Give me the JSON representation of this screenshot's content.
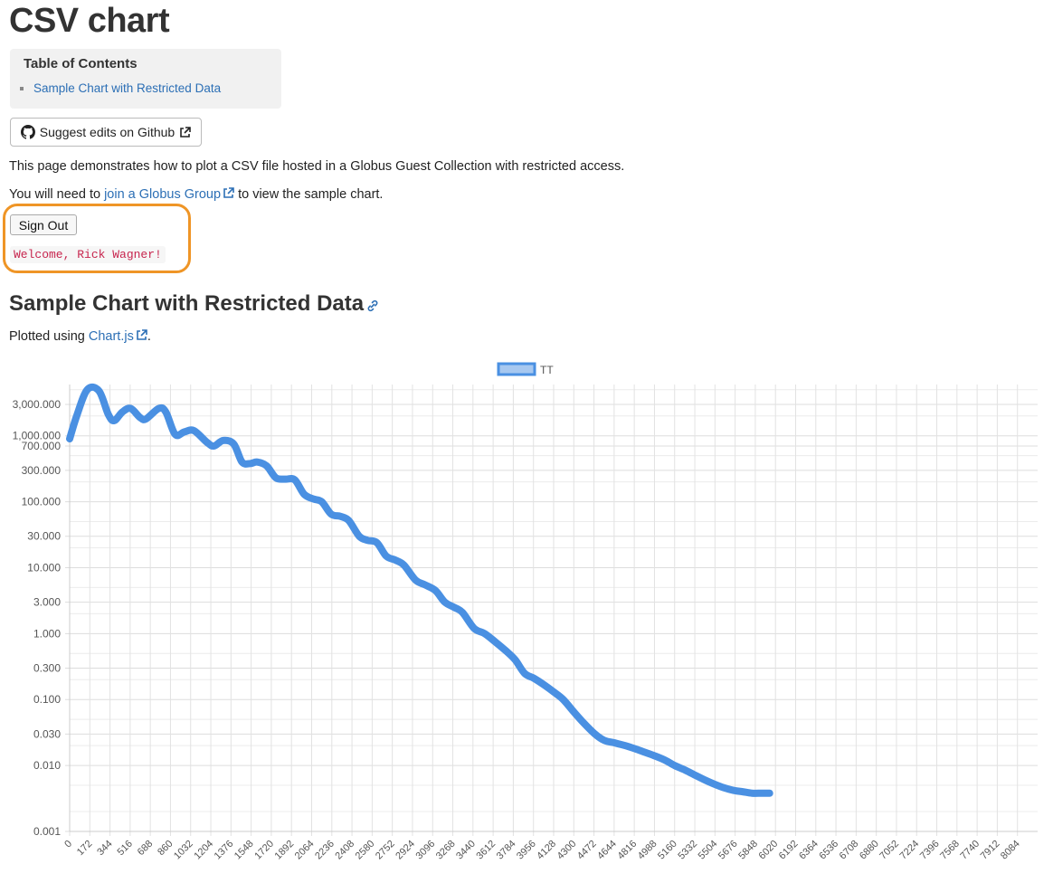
{
  "page": {
    "title": "CSV chart",
    "toc_title": "Table of Contents",
    "toc_items": [
      "Sample Chart with Restricted Data"
    ],
    "github_button": "Suggest edits on Github",
    "intro": "This page demonstrates how to plot a CSV file hosted in a Globus Guest Collection with restricted access.",
    "join_prefix": "You will need to ",
    "join_link": "join a Globus Group",
    "join_suffix": " to view the sample chart.",
    "sign_out": "Sign Out",
    "welcome": "Welcome, Rick Wagner!",
    "section_title": "Sample Chart with Restricted Data",
    "plotted_prefix": "Plotted using ",
    "plotted_link": "Chart.js",
    "plotted_suffix": ".",
    "colors": {
      "link": "#2c6fb5",
      "highlight": "#ef9526",
      "series": "#4a90e2",
      "welcome": "#c7254e"
    },
    "icons": [
      "github-icon",
      "external-link-icon",
      "link-icon"
    ]
  },
  "chart_data": {
    "type": "line",
    "legend": {
      "position": "top",
      "items": [
        {
          "name": "TT",
          "color": "#4a90e2"
        }
      ]
    },
    "y_scale": "log",
    "ylim": [
      0.001,
      6000
    ],
    "y_tick_labels": [
      "3,000.000",
      "1,000.000",
      "700.000",
      "300.000",
      "100.000",
      "30.000",
      "10.000",
      "3.000",
      "1.000",
      "0.300",
      "0.100",
      "0.030",
      "0.010",
      "0.001"
    ],
    "y_ticks": [
      3000,
      1000,
      700,
      300,
      100,
      30,
      10,
      3,
      1,
      0.3,
      0.1,
      0.03,
      0.01,
      0.001
    ],
    "x_tick_labels": [
      "0",
      "172",
      "344",
      "516",
      "688",
      "860",
      "1032",
      "1204",
      "1376",
      "1548",
      "1720",
      "1892",
      "2064",
      "2236",
      "2408",
      "2580",
      "2752",
      "2924",
      "3096",
      "3268",
      "3440",
      "3612",
      "3784",
      "3956",
      "4128",
      "4300",
      "4472",
      "4644",
      "4816",
      "4988",
      "5160",
      "5332",
      "5504",
      "5676",
      "5848",
      "6020",
      "6192",
      "6364",
      "6536",
      "6708",
      "6880",
      "7052",
      "7224",
      "7396",
      "7568",
      "7740",
      "7912",
      "8084"
    ],
    "x_max": 8256,
    "grid": true,
    "series": [
      {
        "name": "TT",
        "points": [
          [
            0,
            900
          ],
          [
            60,
            2000
          ],
          [
            150,
            5000
          ],
          [
            250,
            4800
          ],
          [
            330,
            2100
          ],
          [
            380,
            1700
          ],
          [
            450,
            2300
          ],
          [
            520,
            2600
          ],
          [
            600,
            1900
          ],
          [
            650,
            1800
          ],
          [
            760,
            2600
          ],
          [
            820,
            2300
          ],
          [
            900,
            1050
          ],
          [
            980,
            1150
          ],
          [
            1060,
            1200
          ],
          [
            1170,
            800
          ],
          [
            1230,
            700
          ],
          [
            1310,
            850
          ],
          [
            1400,
            750
          ],
          [
            1470,
            400
          ],
          [
            1540,
            380
          ],
          [
            1600,
            400
          ],
          [
            1680,
            350
          ],
          [
            1760,
            230
          ],
          [
            1840,
            220
          ],
          [
            1920,
            215
          ],
          [
            2000,
            130
          ],
          [
            2080,
            110
          ],
          [
            2150,
            100
          ],
          [
            2230,
            65
          ],
          [
            2310,
            60
          ],
          [
            2380,
            52
          ],
          [
            2470,
            30
          ],
          [
            2540,
            26
          ],
          [
            2620,
            24
          ],
          [
            2700,
            15
          ],
          [
            2780,
            13
          ],
          [
            2850,
            11
          ],
          [
            2950,
            6.5
          ],
          [
            3030,
            5.5
          ],
          [
            3120,
            4.5
          ],
          [
            3200,
            3
          ],
          [
            3280,
            2.5
          ],
          [
            3350,
            2.1
          ],
          [
            3450,
            1.2
          ],
          [
            3540,
            1.0
          ],
          [
            3630,
            0.75
          ],
          [
            3720,
            0.55
          ],
          [
            3800,
            0.4
          ],
          [
            3880,
            0.25
          ],
          [
            3960,
            0.21
          ],
          [
            4040,
            0.17
          ],
          [
            4130,
            0.13
          ],
          [
            4210,
            0.1
          ],
          [
            4300,
            0.065
          ],
          [
            4380,
            0.045
          ],
          [
            4480,
            0.03
          ],
          [
            4560,
            0.024
          ],
          [
            4650,
            0.022
          ],
          [
            4740,
            0.02
          ],
          [
            4820,
            0.018
          ],
          [
            4900,
            0.016
          ],
          [
            4990,
            0.014
          ],
          [
            5080,
            0.012
          ],
          [
            5160,
            0.01
          ],
          [
            5250,
            0.0085
          ],
          [
            5330,
            0.0072
          ],
          [
            5420,
            0.006
          ],
          [
            5500,
            0.0052
          ],
          [
            5580,
            0.0046
          ],
          [
            5660,
            0.0042
          ],
          [
            5740,
            0.004
          ],
          [
            5820,
            0.0038
          ],
          [
            5900,
            0.0038
          ],
          [
            5970,
            0.0038
          ]
        ]
      }
    ]
  }
}
